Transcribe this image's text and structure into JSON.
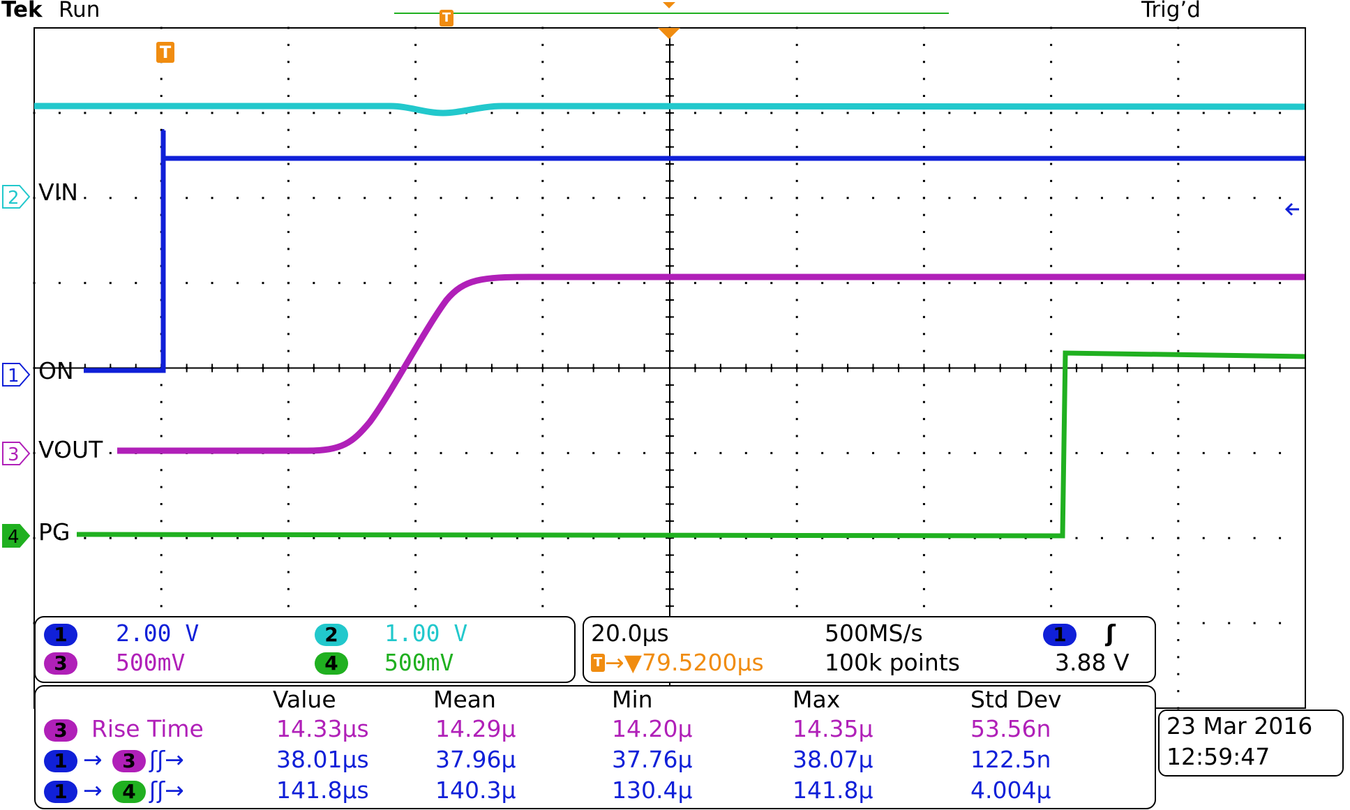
{
  "header": {
    "brand": "Tek",
    "run_state": "Run",
    "trigger_state": "Trig’d",
    "marker_glyph": "T"
  },
  "channels": {
    "ch2": {
      "number": "2",
      "label": "VIN",
      "scale": "1.00 V",
      "color": "#22c8cc"
    },
    "ch1": {
      "number": "1",
      "label": "ON",
      "scale": "2.00 V",
      "color": "#1020d8"
    },
    "ch3": {
      "number": "3",
      "label": "VOUT",
      "scale": "500mV",
      "color": "#b020b8"
    },
    "ch4": {
      "number": "4",
      "label": "PG",
      "scale": "500mV",
      "color": "#20b020"
    }
  },
  "timebase": {
    "horizontal_scale": "20.0µs",
    "sample_rate": "500MS/s",
    "trigger_position": "→▼79.5200µs",
    "record_length": "100k points",
    "trigger_source": "1",
    "trigger_slope": "ʃ",
    "trigger_level": "3.88 V"
  },
  "measurements": {
    "headers": [
      "Value",
      "Mean",
      "Min",
      "Max",
      "Std Dev"
    ],
    "rows": [
      {
        "ch": "3",
        "ch2": "",
        "label": "Rise Time",
        "value": "14.33µs",
        "mean": "14.29µ",
        "min": "14.20µ",
        "max": "14.35µ",
        "std": "53.56n"
      },
      {
        "ch": "1",
        "ch2": "3",
        "label": "ʃʃ→",
        "value": "38.01µs",
        "mean": "37.96µ",
        "min": "37.76µ",
        "max": "38.07µ",
        "std": "122.5n"
      },
      {
        "ch": "1",
        "ch2": "4",
        "label": "ʃʃ→",
        "value": "141.8µs",
        "mean": "140.3µ",
        "min": "130.4µ",
        "max": "141.8µ",
        "std": "4.004µ"
      }
    ]
  },
  "datetime": {
    "date": "23 Mar 2016",
    "time": "12:59:47"
  },
  "colors": {
    "trigger_orange": "#f08c10",
    "record_green": "#20b020",
    "grid": "#000000"
  }
}
